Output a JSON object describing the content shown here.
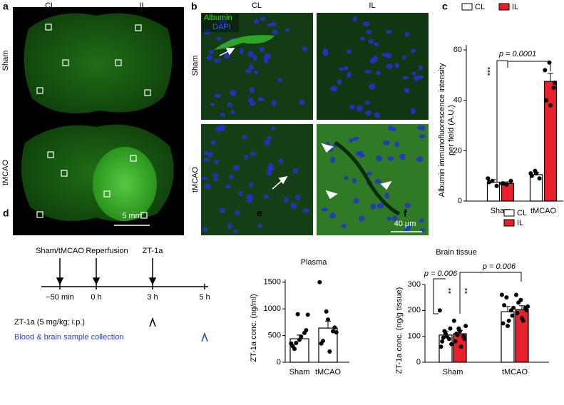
{
  "panel_a": {
    "label": "a",
    "columns": [
      "CL",
      "IL"
    ],
    "rows": [
      "Sham",
      "tMCAO"
    ],
    "scale_bar": "5 mm"
  },
  "panel_b": {
    "label": "b",
    "columns": [
      "CL",
      "IL"
    ],
    "rows": [
      "Sham",
      "tMCAO"
    ],
    "stains": [
      "Albumin",
      "DAPI"
    ],
    "scale_bar": "40 μm"
  },
  "panel_d": {
    "label": "d",
    "events": [
      "Sham/tMCAO",
      "Reperfusion",
      "ZT-1a"
    ],
    "times": [
      "−50 min",
      "0 h",
      "3 h",
      "5 h"
    ],
    "legend": [
      "ZT-1a (5 mg/kg; i.p.)",
      "Blood & brain sample collection"
    ]
  },
  "chart_data": [
    {
      "panel": "c",
      "type": "bar",
      "y_label": [
        "Albumin immunofluorescence intensity",
        "per field (A.U.)"
      ],
      "categories": [
        "Sham",
        "tMCAO"
      ],
      "ylim": [
        0,
        62
      ],
      "yticks": [
        0,
        20,
        40,
        60
      ],
      "series": [
        {
          "name": "CL",
          "color": "#ffffff",
          "values": [
            7.5,
            10.5
          ],
          "errors": [
            1,
            1
          ],
          "points": [
            [
              9,
              8,
              6,
              7.5
            ],
            [
              11,
              12,
              9,
              10,
              11
            ]
          ]
        },
        {
          "name": "IL",
          "color": "#e8202a",
          "values": [
            7,
            47.5
          ],
          "errors": [
            0.6,
            3.2
          ],
          "points": [
            [
              7,
              6.5,
              8,
              7
            ],
            [
              52,
              55,
              45,
              40,
              38,
              47
            ]
          ]
        }
      ],
      "annotations": [
        "p = 0.0001",
        "***"
      ]
    },
    {
      "panel": "e",
      "type": "bar",
      "title": "Plasma",
      "y_label": [
        "ZT-1a conc. (ng/ml)"
      ],
      "categories": [
        "Sham",
        "tMCAO"
      ],
      "ylim": [
        0,
        1550
      ],
      "yticks": [
        0,
        500,
        1000,
        1500
      ],
      "series": [
        {
          "color": "#ffffff",
          "values": [
            440,
            640
          ],
          "errors": [
            70,
            130
          ],
          "points": [
            [
              350,
              900,
              550,
              300,
              420,
              600,
              250,
              480,
              890,
              360
            ],
            [
              1500,
              950,
              580,
              350,
              800,
              650,
              400,
              200,
              560
            ]
          ]
        }
      ]
    },
    {
      "panel": "f",
      "type": "bar",
      "title": "Brain tissue",
      "y_label": [
        "ZT-1a conc. (ng/g tissue)"
      ],
      "categories": [
        "Sham",
        "tMCAO"
      ],
      "ylim": [
        0,
        300
      ],
      "yticks": [
        0,
        100,
        200,
        300
      ],
      "series": [
        {
          "name": "CL",
          "color": "#ffffff",
          "values": [
            105,
            195
          ],
          "errors": [
            15,
            20
          ],
          "points": [
            [
              200,
              120,
              90,
              60,
              110,
              130,
              80,
              100,
              70,
              95
            ],
            [
              260,
              250,
              200,
              150,
              140,
              180,
              220,
              160,
              210
            ]
          ]
        },
        {
          "name": "IL",
          "color": "#e8202a",
          "values": [
            110,
            203
          ],
          "errors": [
            12,
            15
          ],
          "points": [
            [
              160,
              130,
              100,
              80,
              120,
              90,
              110,
              60,
              140,
              105
            ],
            [
              260,
              240,
              210,
              190,
              170,
              200,
              230,
              160,
              215
            ]
          ]
        }
      ],
      "annotations": [
        "p = 0.006",
        "p = 0.006",
        "**",
        "**"
      ]
    }
  ]
}
